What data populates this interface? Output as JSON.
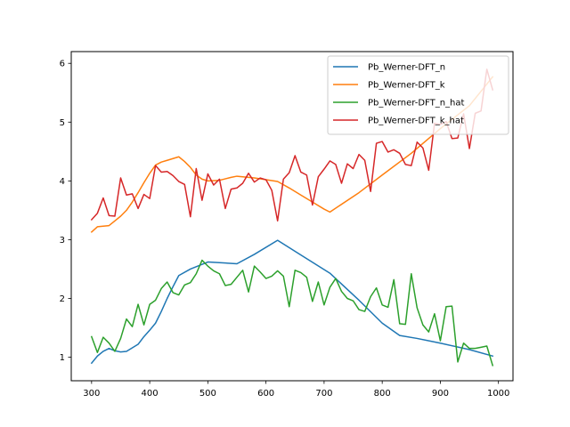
{
  "chart_data": {
    "type": "line",
    "title": "",
    "xlabel": "",
    "ylabel": "",
    "xlim": [
      265,
      1025
    ],
    "ylim": [
      0.6,
      6.2
    ],
    "xticks": [
      300,
      400,
      500,
      600,
      700,
      800,
      900,
      1000
    ],
    "yticks": [
      1,
      2,
      3,
      4,
      5,
      6
    ],
    "grid": false,
    "legend_position": "upper right",
    "series": [
      {
        "name": "Pb_Werner-DFT_n",
        "color": "#1f77b4",
        "x": [
          300,
          310,
          320,
          330,
          340,
          350,
          360,
          370,
          380,
          390,
          400,
          410,
          420,
          430,
          440,
          450,
          470,
          490,
          500,
          520,
          550,
          580,
          620,
          660,
          710,
          760,
          800,
          830,
          860,
          900,
          950,
          990
        ],
        "y": [
          0.9,
          1.02,
          1.1,
          1.15,
          1.11,
          1.09,
          1.1,
          1.16,
          1.22,
          1.35,
          1.46,
          1.58,
          1.78,
          2.0,
          2.2,
          2.39,
          2.5,
          2.58,
          2.62,
          2.61,
          2.59,
          2.75,
          2.99,
          2.74,
          2.43,
          1.97,
          1.58,
          1.37,
          1.32,
          1.24,
          1.13,
          1.02
        ]
      },
      {
        "name": "Pb_Werner-DFT_k",
        "color": "#ff7f0e",
        "x": [
          300,
          310,
          320,
          330,
          340,
          350,
          360,
          370,
          380,
          390,
          400,
          410,
          420,
          430,
          440,
          450,
          460,
          470,
          480,
          490,
          500,
          520,
          540,
          550,
          580,
          600,
          620,
          640,
          660,
          680,
          700,
          710,
          760,
          800,
          850,
          900,
          950,
          990
        ],
        "y": [
          3.13,
          3.22,
          3.23,
          3.24,
          3.32,
          3.4,
          3.5,
          3.64,
          3.8,
          3.97,
          4.13,
          4.27,
          4.32,
          4.35,
          4.38,
          4.41,
          4.33,
          4.23,
          4.1,
          4.03,
          4.0,
          4.01,
          4.06,
          4.08,
          4.05,
          4.02,
          3.99,
          3.88,
          3.76,
          3.64,
          3.52,
          3.47,
          3.8,
          4.1,
          4.47,
          4.89,
          5.28,
          5.77
        ]
      },
      {
        "name": "Pb_Werner-DFT_n_hat",
        "color": "#2ca02c",
        "x": [
          300,
          310,
          320,
          330,
          340,
          350,
          360,
          370,
          380,
          390,
          400,
          410,
          420,
          430,
          440,
          450,
          460,
          470,
          480,
          490,
          500,
          510,
          520,
          530,
          540,
          550,
          560,
          570,
          580,
          590,
          600,
          610,
          620,
          630,
          640,
          650,
          660,
          670,
          680,
          690,
          700,
          710,
          720,
          730,
          740,
          750,
          760,
          770,
          780,
          790,
          800,
          810,
          820,
          830,
          840,
          850,
          860,
          870,
          880,
          890,
          900,
          910,
          920,
          930,
          940,
          950,
          960,
          970,
          980,
          990
        ],
        "y": [
          1.35,
          1.08,
          1.34,
          1.24,
          1.1,
          1.32,
          1.65,
          1.52,
          1.9,
          1.55,
          1.9,
          1.97,
          2.17,
          2.28,
          2.1,
          2.06,
          2.23,
          2.27,
          2.42,
          2.65,
          2.55,
          2.47,
          2.42,
          2.22,
          2.24,
          2.36,
          2.48,
          2.11,
          2.55,
          2.45,
          2.34,
          2.38,
          2.47,
          2.38,
          1.86,
          2.48,
          2.44,
          2.36,
          1.95,
          2.28,
          1.89,
          2.19,
          2.34,
          2.12,
          2.0,
          1.96,
          1.81,
          1.78,
          2.03,
          2.18,
          1.89,
          1.85,
          2.32,
          1.57,
          1.56,
          2.42,
          1.84,
          1.55,
          1.43,
          1.74,
          1.28,
          1.86,
          1.87,
          0.92,
          1.24,
          1.15,
          1.15,
          1.17,
          1.19,
          0.86
        ]
      },
      {
        "name": "Pb_Werner-DFT_k_hat",
        "color": "#d62728",
        "x": [
          300,
          310,
          320,
          330,
          340,
          350,
          360,
          370,
          380,
          390,
          400,
          410,
          420,
          430,
          440,
          450,
          460,
          470,
          480,
          490,
          500,
          510,
          520,
          530,
          540,
          550,
          560,
          570,
          580,
          590,
          600,
          610,
          620,
          630,
          640,
          650,
          660,
          670,
          680,
          690,
          700,
          710,
          720,
          730,
          740,
          750,
          760,
          770,
          780,
          790,
          800,
          810,
          820,
          830,
          840,
          850,
          860,
          870,
          880,
          890,
          900,
          910,
          920,
          930,
          940,
          950,
          960,
          970,
          980,
          990
        ],
        "y": [
          3.34,
          3.45,
          3.71,
          3.41,
          3.4,
          4.05,
          3.76,
          3.78,
          3.53,
          3.77,
          3.7,
          4.26,
          4.15,
          4.16,
          4.09,
          3.99,
          3.94,
          3.39,
          4.21,
          3.67,
          4.12,
          3.93,
          4.03,
          3.53,
          3.86,
          3.88,
          3.96,
          4.13,
          3.98,
          4.05,
          4.02,
          3.84,
          3.32,
          4.03,
          4.14,
          4.43,
          4.15,
          4.1,
          3.59,
          4.07,
          4.2,
          4.34,
          4.28,
          3.96,
          4.29,
          4.21,
          4.45,
          4.35,
          3.82,
          4.64,
          4.67,
          4.49,
          4.53,
          4.47,
          4.28,
          4.26,
          4.66,
          4.56,
          4.18,
          4.98,
          4.96,
          5.01,
          4.72,
          4.73,
          5.14,
          4.55,
          5.15,
          5.19,
          5.9,
          5.55
        ]
      }
    ]
  }
}
